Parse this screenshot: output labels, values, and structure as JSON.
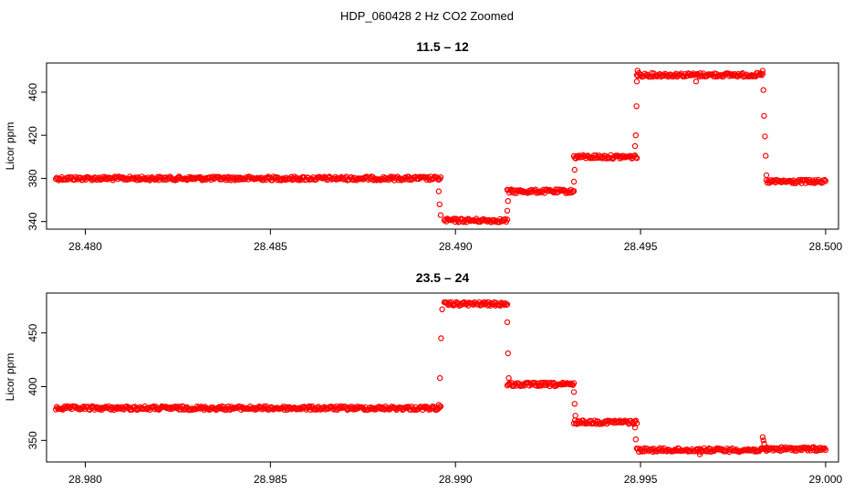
{
  "figure": {
    "title": "HDP_060428  2 Hz CO2 Zoomed"
  },
  "colors": {
    "points": "#ff0000",
    "axis": "#000000"
  },
  "chart_data": [
    {
      "type": "scatter",
      "title": "11.5 – 12",
      "xlabel": "",
      "ylabel": "Licor ppm",
      "xlim": [
        28.4791,
        28.5002
      ],
      "ylim": [
        338,
        482
      ],
      "x_ticks": [
        28.48,
        28.485,
        28.49,
        28.495,
        28.5
      ],
      "x_tick_labels": [
        "28.480",
        "28.485",
        "28.490",
        "28.495",
        "28.500"
      ],
      "y_ticks": [
        340,
        380,
        420,
        460
      ],
      "y_tick_labels": [
        "340",
        "380",
        "420",
        "460"
      ],
      "grid": false,
      "marker": "open-circle",
      "segments": [
        {
          "x_start": 28.4792,
          "x_end": 28.4896,
          "y": 380
        },
        {
          "x_start": 28.4897,
          "x_end": 28.4914,
          "y": 341
        },
        {
          "x_start": 28.4914,
          "x_end": 28.4932,
          "y": 368
        },
        {
          "x_start": 28.4932,
          "x_end": 28.4949,
          "y": 400
        },
        {
          "x_start": 28.4949,
          "x_end": 28.4983,
          "y": 476
        },
        {
          "x_start": 28.4984,
          "x_end": 28.5,
          "y": 377
        }
      ],
      "transition_points": [
        {
          "x": 28.48955,
          "y": 368
        },
        {
          "x": 28.48957,
          "y": 356
        },
        {
          "x": 28.4896,
          "y": 346
        },
        {
          "x": 28.4914,
          "x2": null,
          "y": 350
        },
        {
          "x": 28.49142,
          "y": 359
        },
        {
          "x": 28.4932,
          "y": 377
        },
        {
          "x": 28.49322,
          "y": 388
        },
        {
          "x": 28.49485,
          "y": 410
        },
        {
          "x": 28.49487,
          "y": 420
        },
        {
          "x": 28.49489,
          "y": 447
        },
        {
          "x": 28.4949,
          "y": 470
        },
        {
          "x": 28.49492,
          "y": 480
        },
        {
          "x": 28.4965,
          "y": 470
        },
        {
          "x": 28.4983,
          "y": 480
        },
        {
          "x": 28.49832,
          "y": 462
        },
        {
          "x": 28.49834,
          "y": 438
        },
        {
          "x": 28.49836,
          "y": 419
        },
        {
          "x": 28.49838,
          "y": 401
        },
        {
          "x": 28.4984,
          "y": 383
        }
      ]
    },
    {
      "type": "scatter",
      "title": "23.5 – 24",
      "xlabel": "",
      "ylabel": "Licor ppm",
      "xlim": [
        28.9791,
        29.0002
      ],
      "ylim": [
        335,
        482
      ],
      "x_ticks": [
        28.98,
        28.985,
        28.99,
        28.995,
        29.0
      ],
      "x_tick_labels": [
        "28.980",
        "28.985",
        "28.990",
        "28.995",
        "29.000"
      ],
      "y_ticks": [
        350,
        400,
        450
      ],
      "y_tick_labels": [
        "350",
        "400",
        "450"
      ],
      "grid": false,
      "marker": "open-circle",
      "segments": [
        {
          "x_start": 28.9792,
          "x_end": 28.9896,
          "y": 380
        },
        {
          "x_start": 28.9897,
          "x_end": 28.9914,
          "y": 477
        },
        {
          "x_start": 28.9914,
          "x_end": 28.9932,
          "y": 402
        },
        {
          "x_start": 28.9932,
          "x_end": 28.9949,
          "y": 367
        },
        {
          "x_start": 28.9949,
          "x_end": 28.9984,
          "y": 341
        },
        {
          "x_start": 28.9984,
          "x_end": 29.0,
          "y": 342
        }
      ],
      "transition_points": [
        {
          "x": 28.98955,
          "y": 383
        },
        {
          "x": 28.98958,
          "y": 408
        },
        {
          "x": 28.98961,
          "y": 445
        },
        {
          "x": 28.98964,
          "y": 472
        },
        {
          "x": 28.9914,
          "y": 460
        },
        {
          "x": 28.99142,
          "y": 431
        },
        {
          "x": 28.99144,
          "y": 408
        },
        {
          "x": 28.9932,
          "y": 395
        },
        {
          "x": 28.99322,
          "y": 384
        },
        {
          "x": 28.99324,
          "y": 373
        },
        {
          "x": 28.99485,
          "y": 362
        },
        {
          "x": 28.99487,
          "y": 351
        },
        {
          "x": 28.9966,
          "y": 337
        },
        {
          "x": 28.9983,
          "y": 353
        },
        {
          "x": 28.99832,
          "y": 350
        },
        {
          "x": 28.99834,
          "y": 347
        }
      ]
    }
  ]
}
